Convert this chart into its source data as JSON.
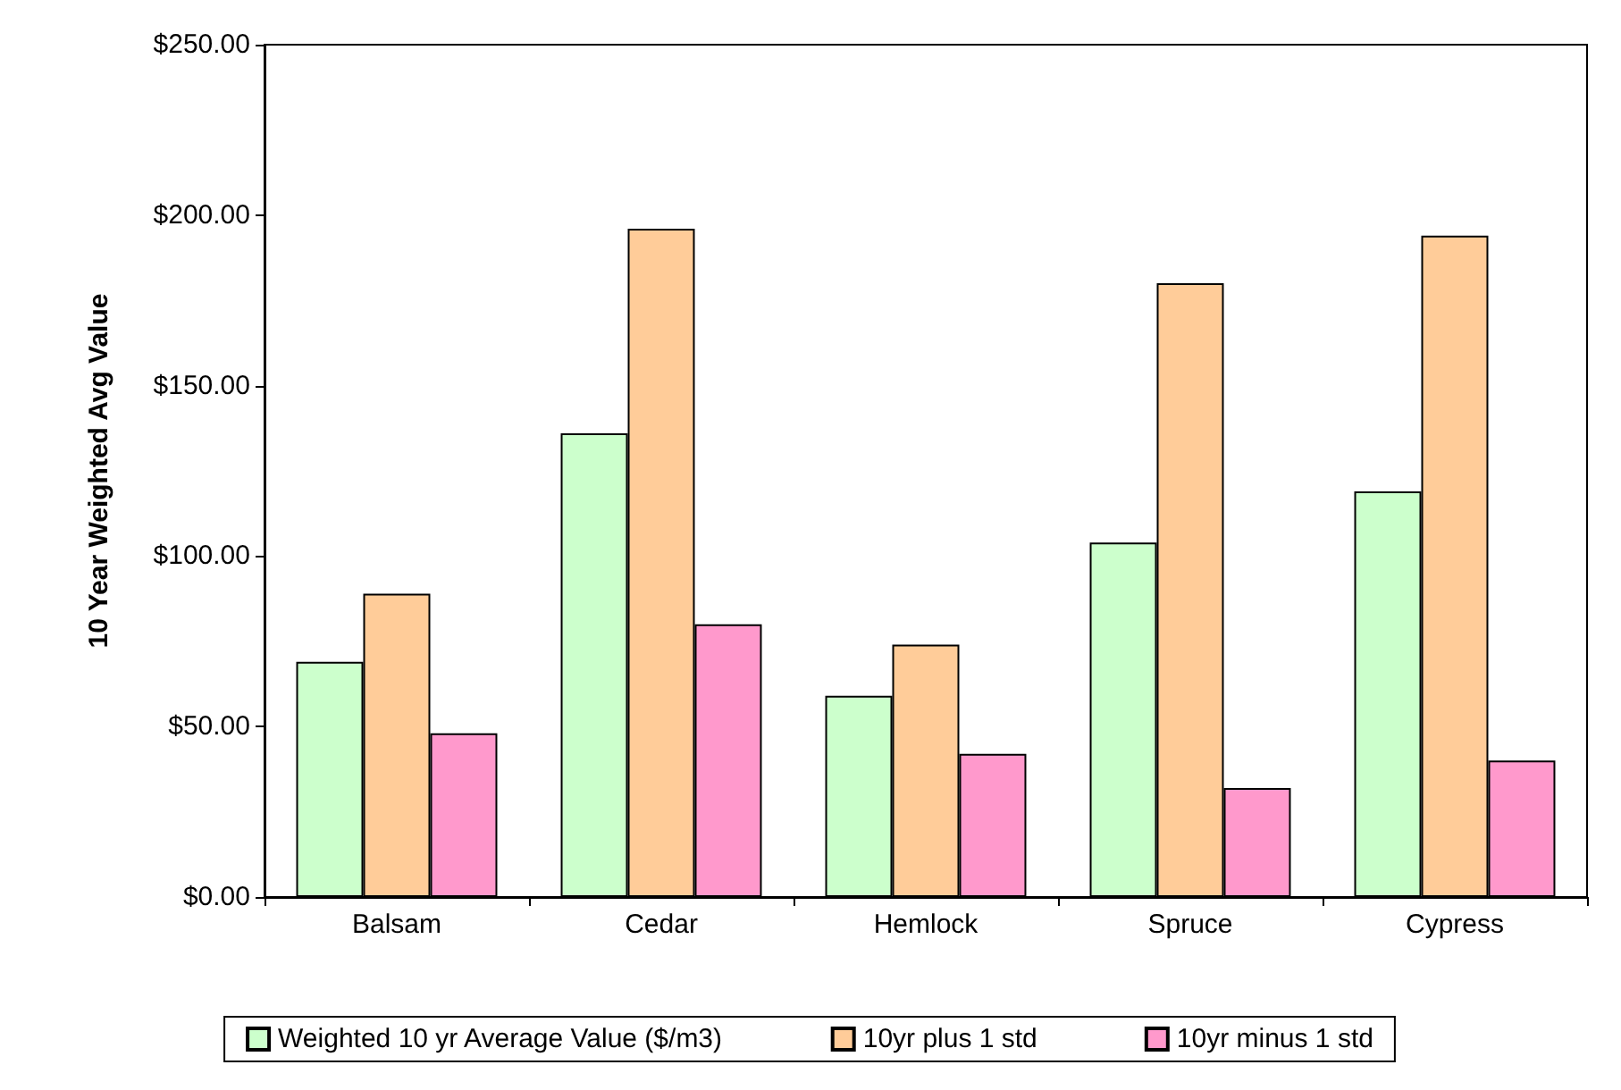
{
  "chart_data": {
    "type": "bar",
    "ylabel": "10 Year Weighted Avg Value",
    "categories": [
      "Balsam",
      "Cedar",
      "Hemlock",
      "Spruce",
      "Cypress"
    ],
    "series": [
      {
        "name": "Weighted 10 yr Average Value ($/m3)",
        "color": "#ccffcc",
        "values": [
          69,
          136,
          59,
          104,
          119
        ]
      },
      {
        "name": "10yr plus 1 std",
        "color": "#ffcc99",
        "values": [
          89,
          196,
          74,
          180,
          194
        ]
      },
      {
        "name": "10yr minus 1 std",
        "color": "#ff99cc",
        "values": [
          48,
          80,
          42,
          32,
          40
        ]
      }
    ],
    "ylim": [
      0,
      250
    ],
    "yticks": [
      {
        "value": 0,
        "label": "$0.00"
      },
      {
        "value": 50,
        "label": "$50.00"
      },
      {
        "value": 100,
        "label": "$100.00"
      },
      {
        "value": 150,
        "label": "$150.00"
      },
      {
        "value": 200,
        "label": "$200.00"
      },
      {
        "value": 250,
        "label": "$250.00"
      }
    ],
    "grid": false,
    "legend": "bottom"
  }
}
